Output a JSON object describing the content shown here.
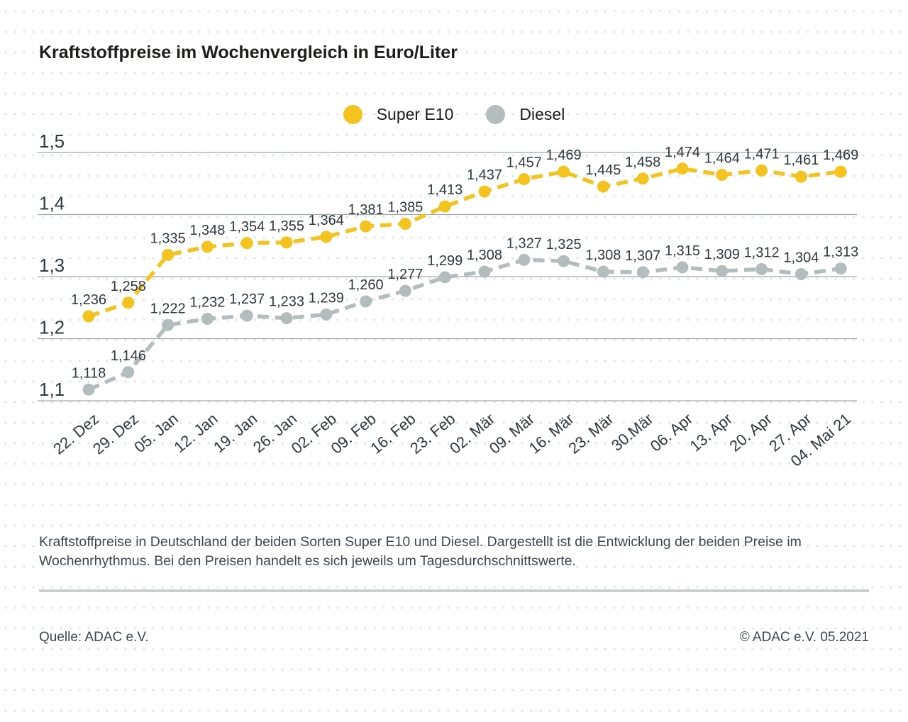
{
  "page": {
    "title": "Kraftstoffpreise im Wochenvergleich in Euro/Liter",
    "description": "Kraftstoffpreise in Deutschland der beiden Sorten Super E10 und Diesel. Dargestellt ist die Entwicklung der beiden Preise im Wochenrhythmus. Bei den Preisen handelt es sich jeweils um Tagesdurchschnittswerte.",
    "source": "Quelle: ADAC e.V.",
    "copyright": "© ADAC e.V. 05.2021"
  },
  "colors": {
    "super_e10": "#F5C31E",
    "diesel": "#B3BDBD",
    "gridline": "#9FA7A7",
    "tick_text": "#2f383c",
    "label_text": "#2f383c",
    "divider": "#C9CFCF"
  },
  "chart_data": {
    "type": "line",
    "title": "Kraftstoffpreise im Wochenvergleich in Euro/Liter",
    "xlabel": "",
    "ylabel": "Euro/Liter",
    "ylim": [
      1.1,
      1.5
    ],
    "yticks": [
      1.1,
      1.2,
      1.3,
      1.4,
      1.5
    ],
    "ytick_labels": [
      "1,1",
      "1,2",
      "1,3",
      "1,4",
      "1,5"
    ],
    "grid": true,
    "legend_position": "top",
    "line_style": "dashed",
    "categories": [
      "22. Dez",
      "29. Dez",
      "05. Jan",
      "12. Jan",
      "19. Jan",
      "26. Jan",
      "02. Feb",
      "09. Feb",
      "16. Feb",
      "23. Feb",
      "02. Mär",
      "09. Mär",
      "16. Mär",
      "23. Mär",
      "30.Mär",
      "06. Apr",
      "13. Apr",
      "20. Apr",
      "27. Apr",
      "04. Mai 21"
    ],
    "series": [
      {
        "name": "Super E10",
        "color": "#F5C31E",
        "values": [
          1.236,
          1.258,
          1.335,
          1.348,
          1.354,
          1.355,
          1.364,
          1.381,
          1.385,
          1.413,
          1.437,
          1.457,
          1.469,
          1.445,
          1.458,
          1.474,
          1.464,
          1.471,
          1.461,
          1.469
        ],
        "labels": [
          "1,236",
          "1,258",
          "1,335",
          "1,348",
          "1,354",
          "1,355",
          "1,364",
          "1,381",
          "1,385",
          "1,413",
          "1,437",
          "1,457",
          "1,469",
          "1,445",
          "1,458",
          "1,474",
          "1,464",
          "1,471",
          "1,461",
          "1,469"
        ]
      },
      {
        "name": "Diesel",
        "color": "#B3BDBD",
        "values": [
          1.118,
          1.146,
          1.222,
          1.232,
          1.237,
          1.233,
          1.239,
          1.26,
          1.277,
          1.299,
          1.308,
          1.327,
          1.325,
          1.308,
          1.307,
          1.315,
          1.309,
          1.312,
          1.304,
          1.313
        ],
        "labels": [
          "1,118",
          "1,146",
          "1,222",
          "1,232",
          "1,237",
          "1,233",
          "1,239",
          "1,260",
          "1,277",
          "1,299",
          "1,308",
          "1,327",
          "1,325",
          "1,308",
          "1,307",
          "1,315",
          "1,309",
          "1,312",
          "1,304",
          "1,313"
        ]
      }
    ]
  }
}
